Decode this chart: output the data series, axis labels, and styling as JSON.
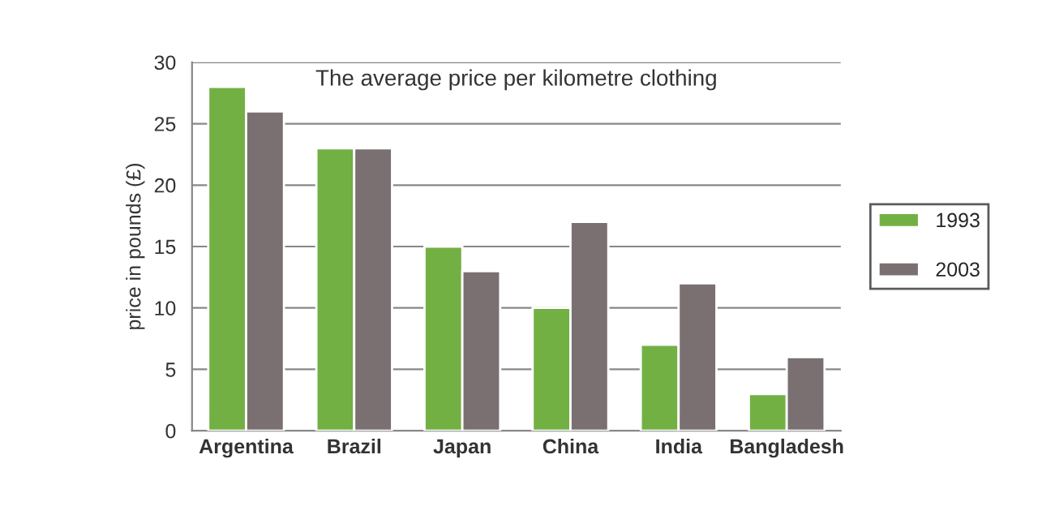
{
  "chart_data": {
    "type": "bar",
    "title": "The average price per kilometre clothing",
    "ylabel": "price in pounds (£)",
    "categories": [
      "Argentina",
      "Brazil",
      "Japan",
      "China",
      "India",
      "Bangladesh"
    ],
    "series": [
      {
        "name": "1993",
        "color": "#72b043",
        "values": [
          28,
          23,
          15,
          10,
          7,
          3
        ]
      },
      {
        "name": "2003",
        "color": "#7a7071",
        "values": [
          26,
          23,
          13,
          17,
          12,
          6
        ]
      }
    ],
    "ylim": [
      0,
      30
    ],
    "yticks": [
      0,
      5,
      10,
      15,
      20,
      25,
      30
    ],
    "grid": "y",
    "legend": "right"
  }
}
